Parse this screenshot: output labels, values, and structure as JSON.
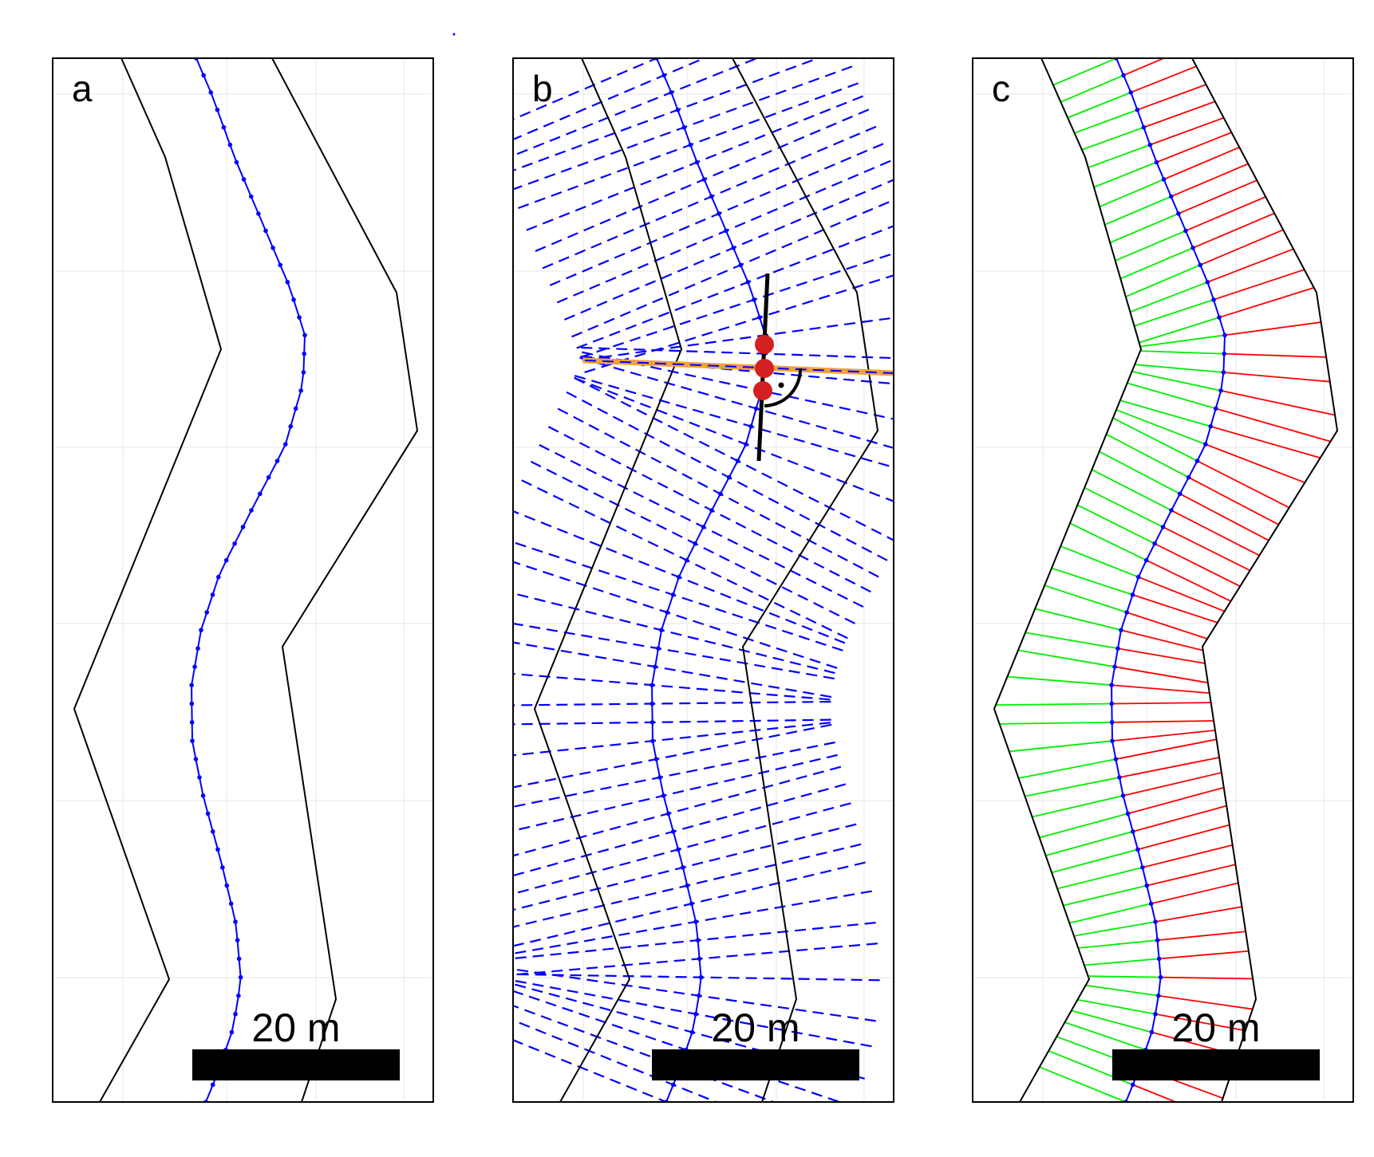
{
  "panels": [
    {
      "id": "a",
      "letter": "a",
      "scale_label": "20 m"
    },
    {
      "id": "b",
      "letter": "b",
      "scale_label": "20 m"
    },
    {
      "id": "c",
      "letter": "c",
      "scale_label": "20 m"
    }
  ],
  "colors": {
    "bank": "#000000",
    "centerline": "#0000ff",
    "transect": "#0000ff",
    "left_width": "#00ee00",
    "right_width": "#ff0000",
    "highlight_transect": "#f0a040",
    "highlight_points": "#d42020",
    "grid": "#ebebeb",
    "scalebar": "#000000"
  }
}
